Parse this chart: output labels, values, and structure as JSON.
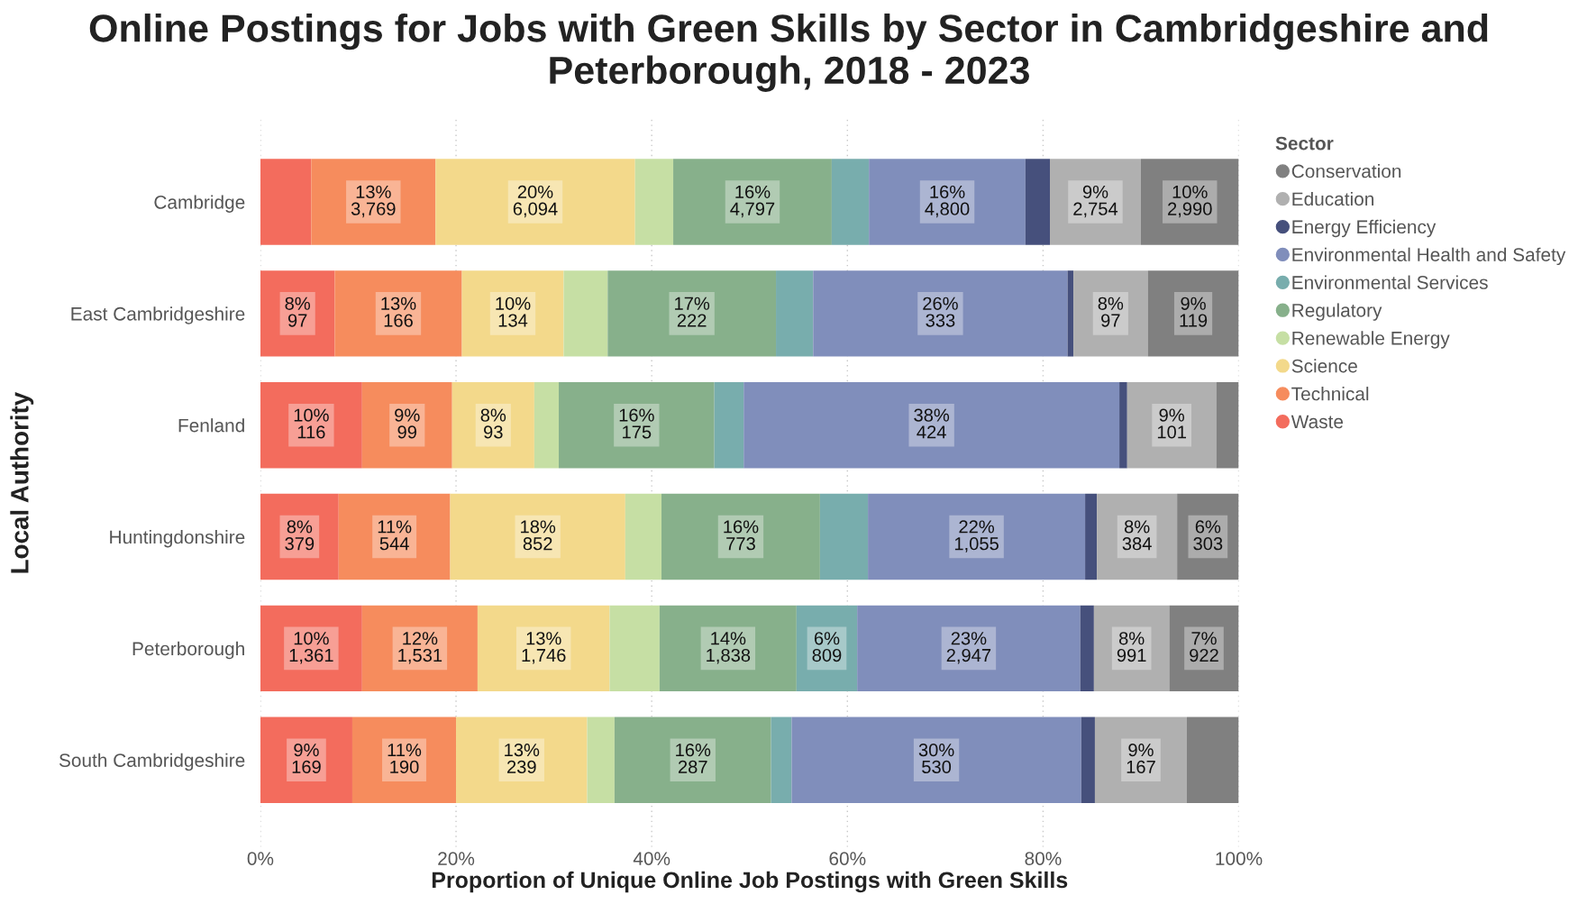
{
  "chart_data": {
    "type": "bar",
    "orientation": "horizontal",
    "stacked": true,
    "title": "Online Postings for Jobs with Green Skills by Sector in Cambridgeshire and Peterborough, 2018 - 2023",
    "xlabel": "Proportion of Unique Online Job Postings with Green Skills",
    "ylabel": "Local Authority",
    "legend_title": "Sector",
    "categories": [
      "Cambridge",
      "East Cambridgeshire",
      "Fenland",
      "Huntingdonshire",
      "Peterborough",
      "South Cambridgeshire"
    ],
    "xlim": [
      0,
      100
    ],
    "xticks": [
      {
        "value": 0,
        "label": "0%"
      },
      {
        "value": 20,
        "label": "20%"
      },
      {
        "value": 40,
        "label": "40%"
      },
      {
        "value": 60,
        "label": "60%"
      },
      {
        "value": 80,
        "label": "80%"
      },
      {
        "value": 100,
        "label": "100%"
      }
    ],
    "grid": "x",
    "legend": "right",
    "marker": "circle",
    "series": [
      {
        "name": "Waste",
        "color": "#f36c5d",
        "values": [
          5.2,
          7.6,
          10.4,
          8.0,
          10.4,
          9.4
        ],
        "value_labels": [
          null,
          "8%\n97",
          "10%\n116",
          "8%\n379",
          "10%\n1,361",
          "9%\n169"
        ]
      },
      {
        "name": "Technical",
        "color": "#f68c5d",
        "values": [
          12.7,
          13.0,
          9.2,
          11.4,
          11.8,
          10.6
        ],
        "value_labels": [
          "13%\n3,769",
          "13%\n166",
          "9%\n99",
          "11%\n544",
          "12%\n1,531",
          "11%\n190"
        ]
      },
      {
        "name": "Science",
        "color": "#f3d98b",
        "values": [
          20.4,
          10.4,
          8.4,
          17.9,
          13.5,
          13.4
        ],
        "value_labels": [
          "20%\n6,094",
          "10%\n134",
          "8%\n93",
          "18%\n852",
          "13%\n1,746",
          "13%\n239"
        ]
      },
      {
        "name": "Renewable Energy",
        "color": "#c6dfa4",
        "values": [
          3.9,
          4.5,
          2.5,
          3.7,
          5.1,
          2.8
        ],
        "value_labels": [
          null,
          null,
          null,
          null,
          null,
          null
        ]
      },
      {
        "name": "Regulatory",
        "color": "#87b08b",
        "values": [
          16.2,
          17.2,
          15.9,
          16.2,
          14.0,
          16.0
        ],
        "value_labels": [
          "16%\n4,797",
          "17%\n222",
          "16%\n175",
          "16%\n773",
          "14%\n1,838",
          "16%\n287"
        ]
      },
      {
        "name": "Environmental Services",
        "color": "#78adad",
        "values": [
          3.8,
          3.8,
          3.0,
          4.9,
          6.2,
          2.1
        ],
        "value_labels": [
          null,
          null,
          null,
          null,
          "6%\n809",
          null
        ]
      },
      {
        "name": "Environmental Health and Safety",
        "color": "#808ebb",
        "values": [
          16.0,
          26.0,
          38.4,
          22.2,
          22.8,
          29.6
        ],
        "value_labels": [
          "16%\n4,800",
          "26%\n333",
          "38%\n424",
          "22%\n1,055",
          "23%\n2,947",
          "30%\n530"
        ]
      },
      {
        "name": "Energy Efficiency",
        "color": "#46507c",
        "values": [
          2.5,
          0.6,
          0.8,
          1.2,
          1.4,
          1.4
        ],
        "value_labels": [
          null,
          null,
          null,
          null,
          null,
          null
        ]
      },
      {
        "name": "Education",
        "color": "#b0b0b0",
        "values": [
          9.3,
          7.6,
          9.1,
          8.2,
          7.7,
          9.4
        ],
        "value_labels": [
          "9%\n2,754",
          "8%\n97",
          "9%\n101",
          "8%\n384",
          "8%\n991",
          "9%\n167"
        ]
      },
      {
        "name": "Conservation",
        "color": "#808080",
        "values": [
          10.0,
          9.3,
          2.3,
          6.3,
          7.1,
          5.3
        ],
        "value_labels": [
          "10%\n2,990",
          "9%\n119",
          null,
          "6%\n303",
          "7%\n922",
          null
        ]
      }
    ]
  }
}
